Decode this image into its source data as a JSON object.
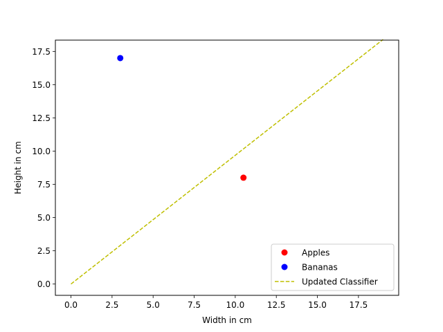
{
  "chart_data": {
    "type": "scatter",
    "title": "",
    "xlabel": "Width in cm",
    "ylabel": "Height in cm",
    "xlim": [
      -0.95,
      19.95
    ],
    "ylim": [
      -0.85,
      18.35
    ],
    "xticks": [
      0.0,
      2.5,
      5.0,
      7.5,
      10.0,
      12.5,
      15.0,
      17.5
    ],
    "xtick_labels": [
      "0.0",
      "2.5",
      "5.0",
      "7.5",
      "10.0",
      "12.5",
      "15.0",
      "17.5"
    ],
    "yticks": [
      0.0,
      2.5,
      5.0,
      7.5,
      10.0,
      12.5,
      15.0,
      17.5
    ],
    "ytick_labels": [
      "0.0",
      "2.5",
      "5.0",
      "7.5",
      "10.0",
      "12.5",
      "15.0",
      "17.5"
    ],
    "grid": false,
    "legend_position": "lower-right",
    "series": [
      {
        "name": "Apples",
        "kind": "points",
        "color": "#ff0000",
        "x": [
          10.5
        ],
        "y": [
          8.0
        ]
      },
      {
        "name": "Bananas",
        "kind": "points",
        "color": "#0000ff",
        "x": [
          3.0
        ],
        "y": [
          17.0
        ]
      },
      {
        "name": "Updated Classifier",
        "kind": "dashed-line",
        "color": "#bfbf00",
        "x": [
          0.0,
          19.0
        ],
        "y": [
          0.0,
          18.4
        ]
      }
    ]
  }
}
